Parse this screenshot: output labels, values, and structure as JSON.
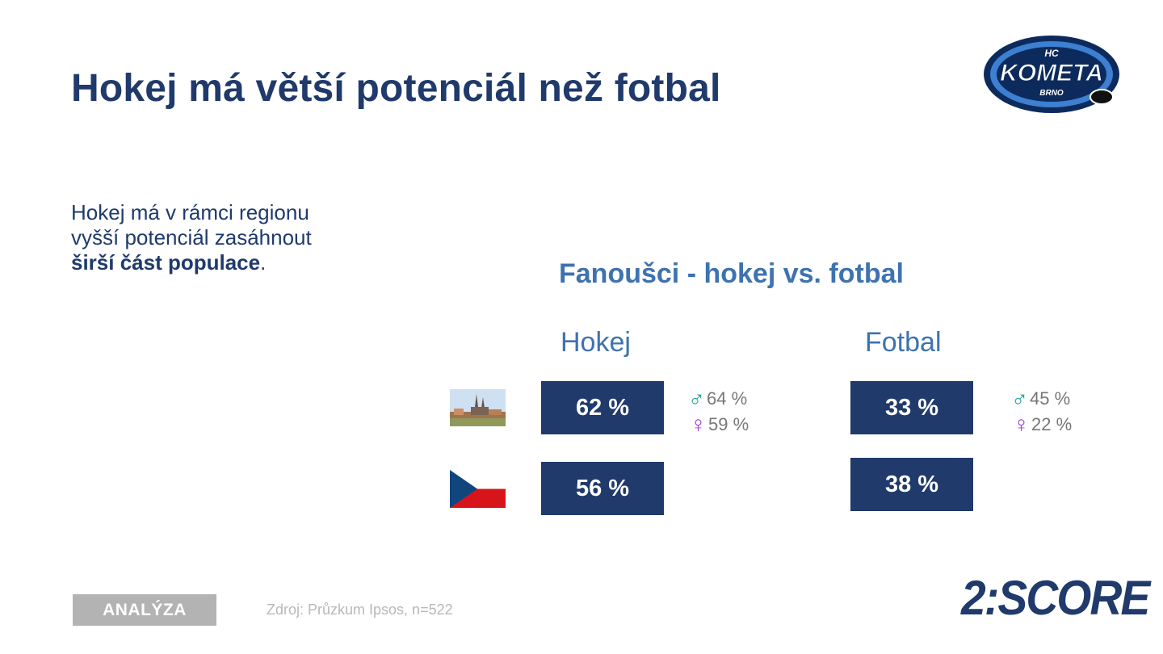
{
  "slide": {
    "title": "Hokej má větší potenciál než fotbal",
    "logo": {
      "icon": "hc-kometa-brno-logo",
      "text_top": "HC",
      "text_main": "KOMETA",
      "text_bottom": "BRNO"
    },
    "intro": {
      "line1": "Hokej má v rámci regionu",
      "line2": "vyšší potenciál zasáhnout",
      "bold": "širší část populace",
      "end": "."
    },
    "subtitle": "Fanoušci - hokej vs. fotbal",
    "columns": {
      "hockey": "Hokej",
      "football": "Fotbal"
    },
    "rows": [
      {
        "icon": "brno-city-photo",
        "hockey": "62 %",
        "football": "33 %",
        "hockey_gender": {
          "male": "64 %",
          "female": "59 %"
        },
        "football_gender": {
          "male": "45 %",
          "female": "22 %"
        }
      },
      {
        "icon": "czech-flag-icon",
        "hockey": "56 %",
        "football": "38 %"
      }
    ],
    "symbols": {
      "male": "♂",
      "female": "♀"
    },
    "footer": {
      "badge": "ANALÝZA",
      "source": "Zdroj: Průzkum Ipsos, n=522",
      "brand": "2:SCORE"
    },
    "colors": {
      "navy": "#1f3a6b",
      "accent_blue": "#3e72b0",
      "male": "#1aa39a",
      "female": "#a33bd6",
      "flag_red": "#d7141a",
      "flag_blue": "#11457e"
    }
  }
}
